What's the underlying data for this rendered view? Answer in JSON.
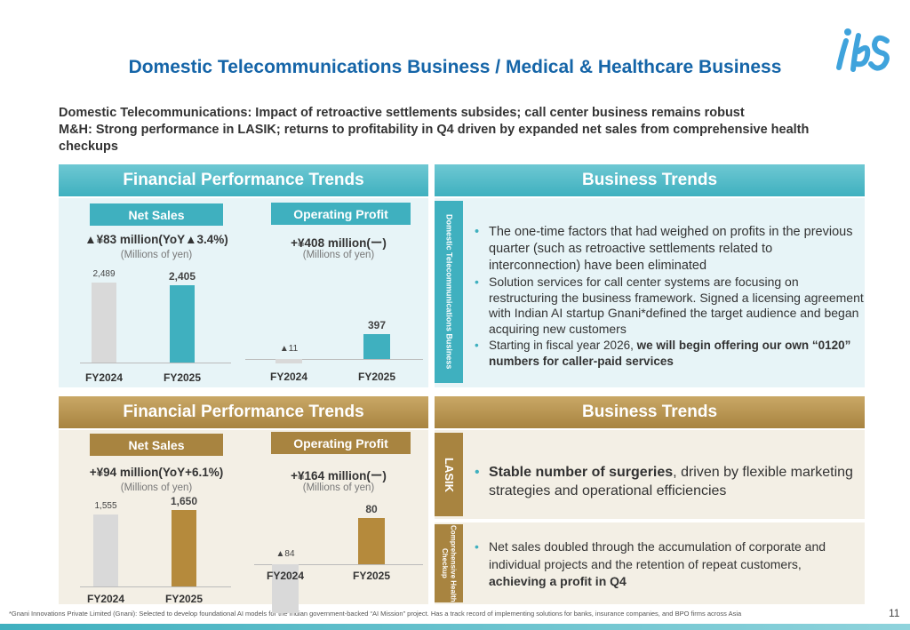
{
  "title": "Domestic Telecommunications Business / Medical & Healthcare Business",
  "summary": {
    "line1": "Domestic Telecommunications: Impact of retroactive settlements subsides; call center business remains robust",
    "line2": "M&H: Strong performance in LASIK; returns to profitability in Q4 driven by expanded net sales  from comprehensive health checkups"
  },
  "colors": {
    "teal": "#3fb0bf",
    "gold": "#a88440",
    "title_blue": "#1565a8",
    "grey_bar": "#d9d9d9"
  },
  "telecom": {
    "fin_header": "Financial Performance Trends",
    "biz_header": "Business Trends",
    "side_label": "Domestic Telecommunications Business",
    "net_sales": {
      "label": "Net Sales",
      "change": "▲¥83 million(YoY▲3.4%)",
      "unit": "(Millions of yen)",
      "bars": [
        {
          "year": "FY2024",
          "value": 2489,
          "label": "2,489"
        },
        {
          "year": "FY2025",
          "value": 2405,
          "label": "2,405"
        }
      ]
    },
    "op_profit": {
      "label": "Operating Profit",
      "change": "+¥408 million(ー)",
      "unit": "(Millions of yen)",
      "bars": [
        {
          "year": "FY2024",
          "value": -11,
          "label": "▲11"
        },
        {
          "year": "FY2025",
          "value": 397,
          "label": "397"
        }
      ]
    },
    "bullets": [
      "The one-time factors that had weighed on profits in the previous quarter (such as retroactive settlements related to interconnection) have been eliminated",
      "Solution services for call center systems are focusing on restructuring the business framework. Signed a licensing agreement with Indian AI startup Gnani*defined the target audience and began acquiring new customers"
    ],
    "bullet3_normal": "Starting in fiscal year 2026, ",
    "bullet3_bold": "we will begin offering our own “0120” numbers for caller-paid services"
  },
  "medical": {
    "fin_header": "Financial Performance Trends",
    "biz_header": "Business Trends",
    "net_sales": {
      "label": "Net Sales",
      "change": "+¥94 million(YoY+6.1%)",
      "unit": "(Millions of yen)",
      "bars": [
        {
          "year": "FY2024",
          "value": 1555,
          "label": "1,555"
        },
        {
          "year": "FY2025",
          "value": 1650,
          "label": "1,650"
        }
      ]
    },
    "op_profit": {
      "label": "Operating Profit",
      "change": "+¥164 million(ー)",
      "unit": "(Millions of yen)",
      "bars": [
        {
          "year": "FY2024",
          "value": -84,
          "label": "▲84"
        },
        {
          "year": "FY2025",
          "value": 80,
          "label": "80"
        }
      ]
    },
    "lasik": {
      "label": "LASIK",
      "bold": "Stable number of surgeries",
      "rest": ", driven by flexible marketing strategies and operational efficiencies"
    },
    "checkup": {
      "label": "Comprehensive Health Checkup",
      "normal": "Net sales doubled through the accumulation of corporate and individual projects and the retention of repeat customers, ",
      "bold": "achieving a profit in Q4"
    }
  },
  "footnote": "*Gnani Innovations Private Limited (Gnani): Selected to develop foundational AI models for the Indian government-backed “AI Mission” project. Has a track record of implementing solutions for banks, insurance companies, and BPO firms across Asia",
  "page_number": "11",
  "logo_icon": "ibs-logo"
}
